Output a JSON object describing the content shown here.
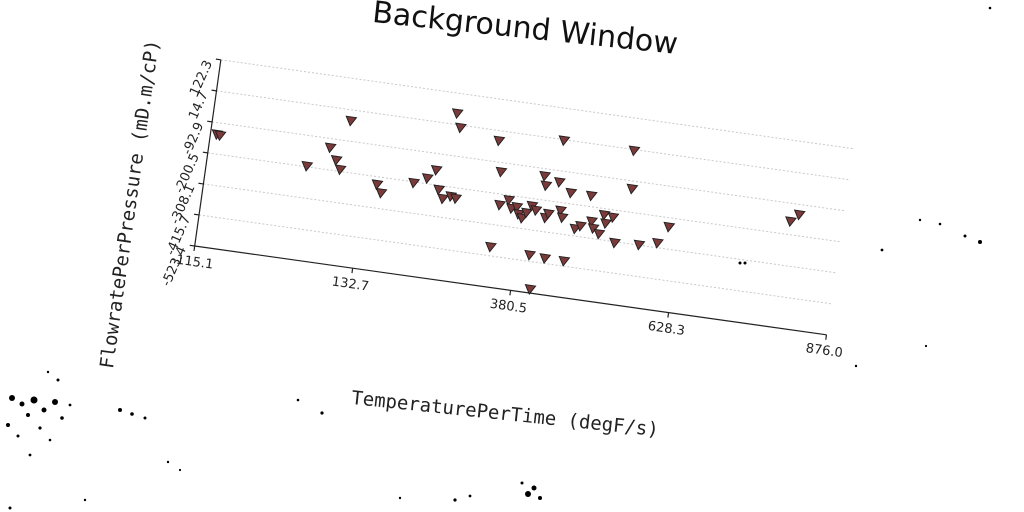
{
  "chart_data": {
    "type": "scatter",
    "title": "Background Window",
    "xlabel": "TemperaturePerTime (degF/s)",
    "ylabel": "FlowratePerPressure (mD.m/cP)",
    "x_ticks": [
      "-115.1",
      "132.7",
      "380.5",
      "628.3",
      "876.0"
    ],
    "y_ticks": [
      "-523.4",
      "-415.7",
      "-308.1",
      "-200.5",
      "-92.9",
      "14.7",
      "122.3"
    ],
    "xlim": [
      -115.1,
      876.0
    ],
    "ylim": [
      -523.4,
      122.3
    ],
    "grid": true,
    "marker": "triangle-down",
    "marker_color": "#7a3a3a",
    "points": [
      {
        "x": -105,
        "y": -133
      },
      {
        "x": -100,
        "y": -135
      },
      {
        "x": 40,
        "y": -198
      },
      {
        "x": 72,
        "y": -124
      },
      {
        "x": 84,
        "y": -164
      },
      {
        "x": 92,
        "y": -194
      },
      {
        "x": 98,
        "y": -23
      },
      {
        "x": 152,
        "y": -227
      },
      {
        "x": 160,
        "y": -254
      },
      {
        "x": 208,
        "y": -204
      },
      {
        "x": 228,
        "y": -182
      },
      {
        "x": 240,
        "y": -150
      },
      {
        "x": 248,
        "y": -215
      },
      {
        "x": 256,
        "y": -244
      },
      {
        "x": 260,
        "y": 53
      },
      {
        "x": 268,
        "y": -232
      },
      {
        "x": 276,
        "y": -237
      },
      {
        "x": 268,
        "y": 6
      },
      {
        "x": 330,
        "y": -20
      },
      {
        "x": 340,
        "y": -125
      },
      {
        "x": 345,
        "y": -238
      },
      {
        "x": 340,
        "y": -385
      },
      {
        "x": 358,
        "y": -217
      },
      {
        "x": 364,
        "y": -244
      },
      {
        "x": 372,
        "y": -237
      },
      {
        "x": 376,
        "y": -260
      },
      {
        "x": 382,
        "y": -272
      },
      {
        "x": 388,
        "y": -252
      },
      {
        "x": 395,
        "y": -226
      },
      {
        "x": 402,
        "y": -239
      },
      {
        "x": 408,
        "y": -118
      },
      {
        "x": 412,
        "y": -150
      },
      {
        "x": 402,
        "y": -394
      },
      {
        "x": 410,
        "y": -510
      },
      {
        "x": 418,
        "y": -260
      },
      {
        "x": 422,
        "y": -245
      },
      {
        "x": 426,
        "y": -398
      },
      {
        "x": 430,
        "y": 12
      },
      {
        "x": 432,
        "y": -132
      },
      {
        "x": 440,
        "y": -228
      },
      {
        "x": 444,
        "y": -251
      },
      {
        "x": 452,
        "y": -163
      },
      {
        "x": 456,
        "y": -398
      },
      {
        "x": 466,
        "y": -283
      },
      {
        "x": 474,
        "y": -271
      },
      {
        "x": 484,
        "y": -163
      },
      {
        "x": 490,
        "y": -250
      },
      {
        "x": 494,
        "y": -273
      },
      {
        "x": 504,
        "y": -289
      },
      {
        "x": 508,
        "y": -222
      },
      {
        "x": 512,
        "y": -250
      },
      {
        "x": 522,
        "y": -226
      },
      {
        "x": 530,
        "y": -312
      },
      {
        "x": 540,
        "y": 11
      },
      {
        "x": 545,
        "y": -120
      },
      {
        "x": 568,
        "y": -307
      },
      {
        "x": 596,
        "y": -292
      },
      {
        "x": 610,
        "y": -232
      },
      {
        "x": 796,
        "y": -155
      },
      {
        "x": 808,
        "y": -128
      }
    ]
  }
}
